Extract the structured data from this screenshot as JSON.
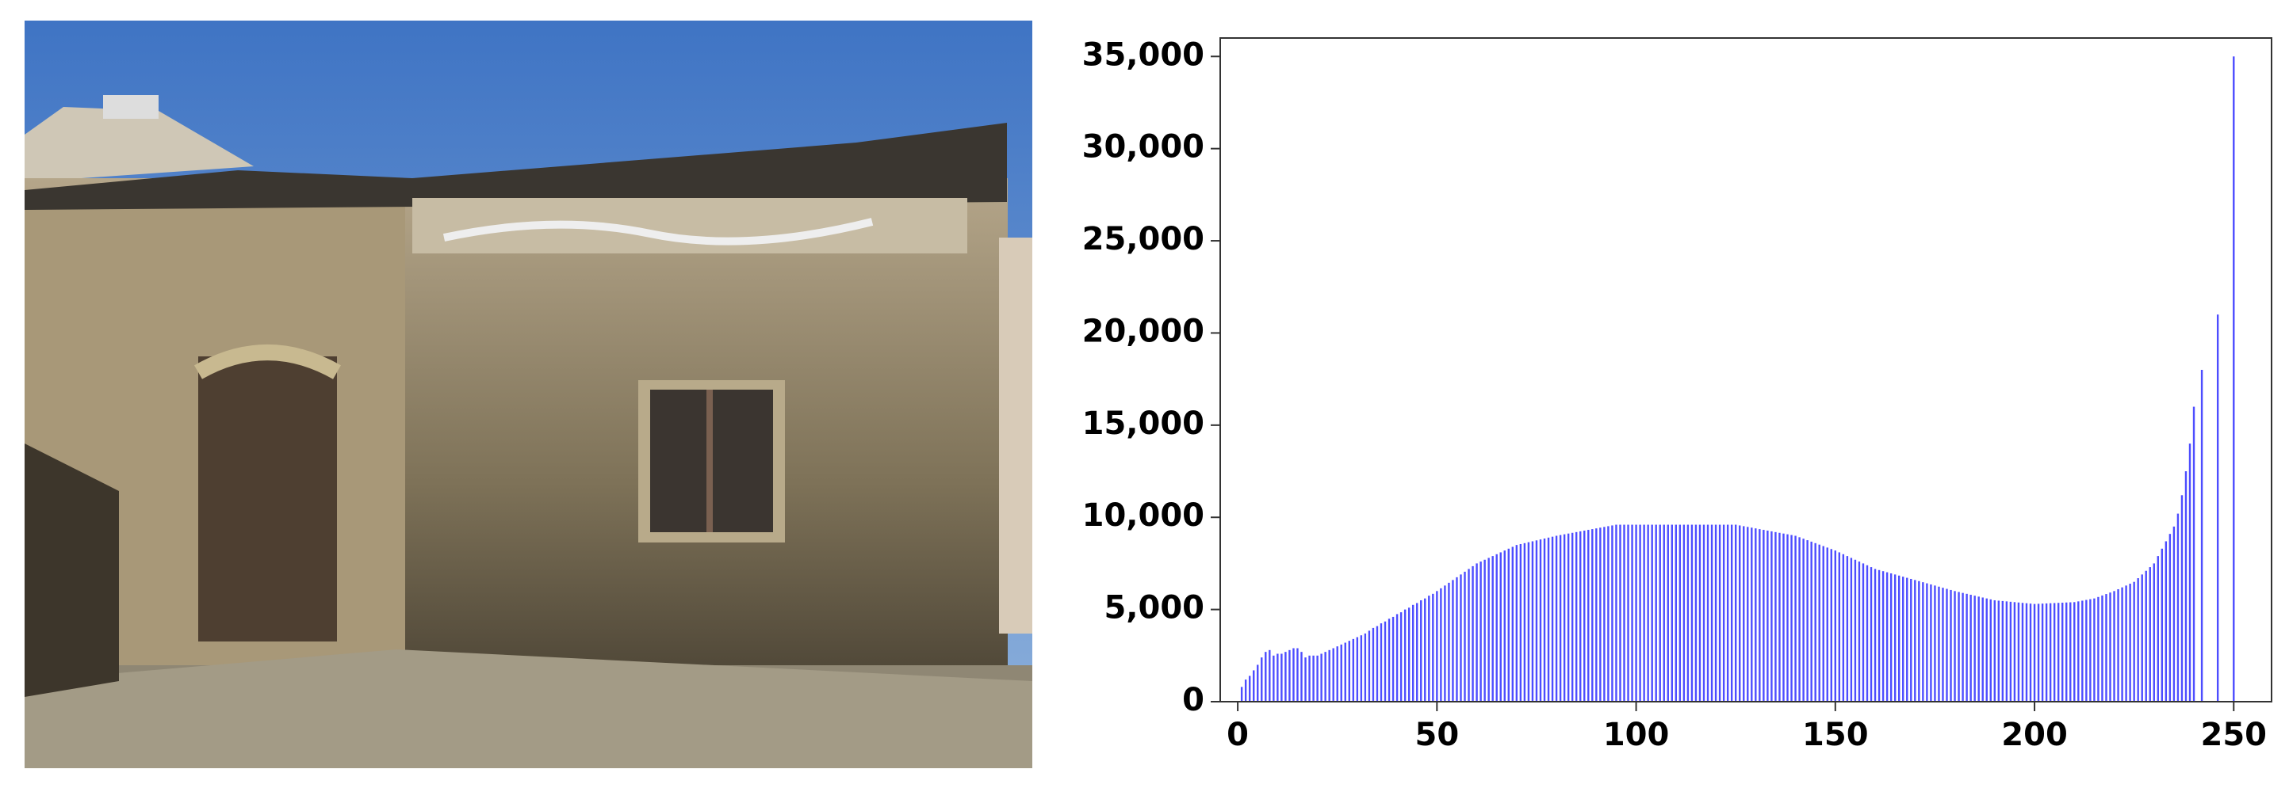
{
  "chart_data": {
    "type": "bar",
    "x": [
      1,
      2,
      3,
      4,
      5,
      6,
      7,
      8,
      9,
      10,
      11,
      12,
      13,
      14,
      15,
      16,
      17,
      18,
      19,
      20,
      21,
      22,
      23,
      24,
      25,
      26,
      27,
      28,
      29,
      30,
      31,
      32,
      33,
      34,
      35,
      36,
      37,
      38,
      39,
      40,
      41,
      42,
      43,
      44,
      45,
      46,
      47,
      48,
      49,
      50,
      51,
      52,
      53,
      54,
      55,
      56,
      57,
      58,
      59,
      60,
      61,
      62,
      63,
      64,
      65,
      66,
      67,
      68,
      69,
      70,
      71,
      72,
      73,
      74,
      75,
      76,
      77,
      78,
      79,
      80,
      81,
      82,
      83,
      84,
      85,
      86,
      87,
      88,
      89,
      90,
      91,
      92,
      93,
      94,
      95,
      96,
      97,
      98,
      99,
      100,
      101,
      102,
      103,
      104,
      105,
      106,
      107,
      108,
      109,
      110,
      111,
      112,
      113,
      114,
      115,
      116,
      117,
      118,
      119,
      120,
      121,
      122,
      123,
      124,
      125,
      126,
      127,
      128,
      129,
      130,
      131,
      132,
      133,
      134,
      135,
      136,
      137,
      138,
      139,
      140,
      141,
      142,
      143,
      144,
      145,
      146,
      147,
      148,
      149,
      150,
      151,
      152,
      153,
      154,
      155,
      156,
      157,
      158,
      159,
      160,
      161,
      162,
      163,
      164,
      165,
      166,
      167,
      168,
      169,
      170,
      171,
      172,
      173,
      174,
      175,
      176,
      177,
      178,
      179,
      180,
      181,
      182,
      183,
      184,
      185,
      186,
      187,
      188,
      189,
      190,
      191,
      192,
      193,
      194,
      195,
      196,
      197,
      198,
      199,
      200,
      201,
      202,
      203,
      204,
      205,
      206,
      207,
      208,
      209,
      210,
      211,
      212,
      213,
      214,
      215,
      216,
      217,
      218,
      219,
      220,
      221,
      222,
      223,
      224,
      225,
      226,
      227,
      228,
      229,
      230,
      231,
      232,
      233,
      234,
      235,
      236,
      237,
      238,
      239,
      240,
      242,
      246,
      250
    ],
    "values": [
      800,
      1200,
      1400,
      1700,
      2000,
      2400,
      2700,
      2800,
      2500,
      2600,
      2600,
      2700,
      2800,
      2900,
      2900,
      2700,
      2400,
      2500,
      2500,
      2500,
      2600,
      2700,
      2800,
      2900,
      3000,
      3100,
      3200,
      3300,
      3400,
      3500,
      3600,
      3700,
      3850,
      4000,
      4100,
      4250,
      4350,
      4500,
      4600,
      4750,
      4850,
      5000,
      5100,
      5250,
      5350,
      5500,
      5600,
      5750,
      5850,
      6000,
      6150,
      6300,
      6450,
      6600,
      6750,
      6900,
      7050,
      7200,
      7350,
      7500,
      7600,
      7700,
      7800,
      7900,
      8000,
      8100,
      8200,
      8300,
      8400,
      8500,
      8550,
      8600,
      8650,
      8700,
      8750,
      8800,
      8850,
      8900,
      8950,
      9000,
      9040,
      9080,
      9120,
      9160,
      9200,
      9240,
      9280,
      9320,
      9360,
      9400,
      9440,
      9480,
      9520,
      9560,
      9600,
      9600,
      9600,
      9600,
      9600,
      9600,
      9600,
      9600,
      9600,
      9600,
      9600,
      9600,
      9600,
      9600,
      9600,
      9600,
      9600,
      9600,
      9600,
      9600,
      9600,
      9600,
      9600,
      9600,
      9600,
      9600,
      9600,
      9600,
      9600,
      9600,
      9600,
      9560,
      9520,
      9480,
      9440,
      9400,
      9360,
      9320,
      9280,
      9240,
      9200,
      9160,
      9120,
      9080,
      9040,
      9000,
      8920,
      8840,
      8760,
      8680,
      8600,
      8520,
      8440,
      8360,
      8280,
      8200,
      8100,
      8000,
      7900,
      7800,
      7700,
      7600,
      7500,
      7400,
      7300,
      7200,
      7140,
      7080,
      7020,
      6960,
      6900,
      6840,
      6780,
      6720,
      6660,
      6600,
      6540,
      6480,
      6420,
      6360,
      6300,
      6240,
      6180,
      6120,
      6060,
      6000,
      5950,
      5900,
      5850,
      5800,
      5750,
      5700,
      5650,
      5600,
      5550,
      5500,
      5480,
      5460,
      5440,
      5420,
      5400,
      5380,
      5360,
      5340,
      5320,
      5300,
      5310,
      5320,
      5330,
      5340,
      5350,
      5360,
      5370,
      5380,
      5390,
      5400,
      5440,
      5480,
      5520,
      5560,
      5600,
      5680,
      5760,
      5840,
      5920,
      6000,
      6100,
      6200,
      6300,
      6400,
      6500,
      6700,
      6900,
      7100,
      7300,
      7500,
      7900,
      8300,
      8700,
      9100,
      9500,
      10200,
      11200,
      12500,
      14000,
      16000,
      18000,
      21000,
      35000
    ],
    "color": "#4d4dff",
    "xlim": [
      -4.4,
      259.5
    ],
    "ylim": [
      0,
      36000
    ],
    "xticks": [
      0,
      50,
      100,
      150,
      200,
      250
    ],
    "yticks": [
      0,
      {
        "value": 5000,
        "label": "5,000"
      },
      {
        "value": 10000,
        "label": "10,000"
      },
      {
        "value": 15000,
        "label": "15,000"
      },
      {
        "value": 20000,
        "label": "20,000"
      },
      {
        "value": 25000,
        "label": "25,000"
      },
      {
        "value": 30000,
        "label": "30,000"
      },
      {
        "value": 35000,
        "label": "35,000"
      }
    ]
  }
}
